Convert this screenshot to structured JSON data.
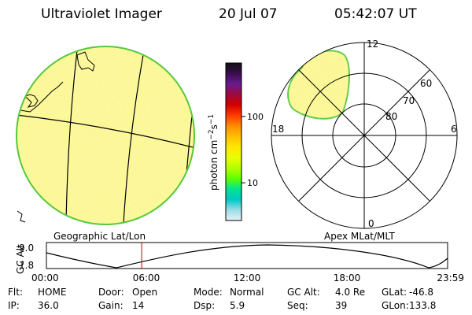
{
  "header": {
    "title": "Ultraviolet Imager",
    "date": "20 Jul 07",
    "time": "05:42:07 UT"
  },
  "colorbar": {
    "unit_main": "photon cm",
    "unit_sup1": "−2",
    "unit_mid": "s",
    "unit_sup2": "−1",
    "ticks": [
      {
        "value": 100,
        "label": "100"
      },
      {
        "value": 10,
        "label": "10"
      }
    ],
    "colors": [
      "#111111",
      "#3a0d4f",
      "#6a1b8f",
      "#9c0a3c",
      "#d40000",
      "#ff3a00",
      "#ff8c00",
      "#ffc000",
      "#ffe600",
      "#e9ff00",
      "#b5ff00",
      "#5eff00",
      "#00e48f",
      "#00c8c8",
      "#9bdde6",
      "#e6f2f6"
    ]
  },
  "geo_panel": {
    "label": "Geographic Lat/Lon",
    "fill_color": "#fbf78f",
    "rim_color": "#56c83a"
  },
  "polar_panel": {
    "label": "Apex MLat/MLT",
    "mlt_labels": {
      "top": "12",
      "bottom": "0",
      "left": "18",
      "right": "6"
    },
    "lat_rings": [
      {
        "value": 80,
        "label": "80"
      },
      {
        "value": 70,
        "label": "70"
      },
      {
        "value": 60,
        "label": "60"
      }
    ]
  },
  "altitude_strip": {
    "ylabel": "GC Alt",
    "y_ticks": [
      "9.0",
      "1.8"
    ],
    "x_ticks": [
      "00:00",
      "06:00",
      "12:00",
      "18:00",
      "23:59"
    ],
    "current_time_hours": 5.7,
    "marker_color": "#c00000"
  },
  "status": {
    "rows": [
      [
        {
          "label": "Flt:",
          "value": "HOME"
        },
        {
          "label": "Door:",
          "value": "Open"
        },
        {
          "label": "Mode:",
          "value": "Normal"
        },
        {
          "label": "GC Alt:",
          "value": "4.0 Re"
        },
        {
          "label": "GLat:",
          "value": "-46.8"
        }
      ],
      [
        {
          "label": "IP:",
          "value": "36.0"
        },
        {
          "label": "Gain:",
          "value": "14"
        },
        {
          "label": "Dsp:",
          "value": "5.9"
        },
        {
          "label": "Seq:",
          "value": "39"
        },
        {
          "label": "GLon:",
          "value": "133.8"
        }
      ]
    ]
  }
}
